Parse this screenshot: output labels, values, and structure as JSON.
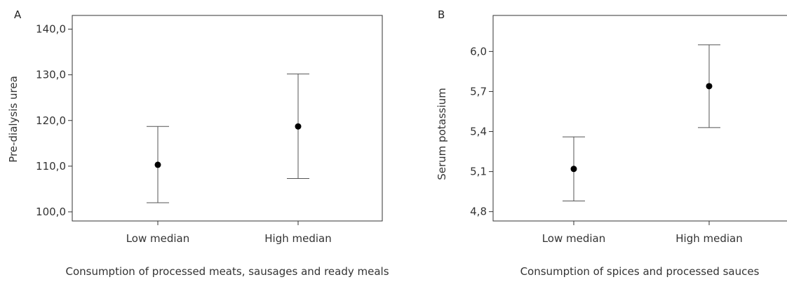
{
  "chart_data": [
    {
      "type": "errorbar",
      "panel_label": "A",
      "categories": [
        "Low median",
        "High median"
      ],
      "means": [
        110.3,
        118.7
      ],
      "lower": [
        102.0,
        107.3
      ],
      "upper": [
        118.7,
        130.2
      ],
      "ylabel": "Pre-dialysis urea",
      "xlabel": "Consumption of processed meats, sausages and ready meals",
      "ylim": [
        98,
        143
      ],
      "yticks": [
        100,
        110,
        120,
        130,
        140
      ],
      "ytick_labels": [
        "100,0",
        "110,0",
        "120,0",
        "130,0",
        "140,0"
      ],
      "grid": false
    },
    {
      "type": "errorbar",
      "panel_label": "B",
      "categories": [
        "Low median",
        "High median"
      ],
      "means": [
        5.12,
        5.74
      ],
      "lower": [
        4.88,
        5.43
      ],
      "upper": [
        5.36,
        6.05
      ],
      "ylabel": "Serum potassium",
      "xlabel": "Consumption of spices and processed sauces",
      "ylim": [
        4.73,
        6.27
      ],
      "yticks": [
        4.8,
        5.1,
        5.4,
        5.7,
        6.0
      ],
      "ytick_labels": [
        "4,8",
        "5,1",
        "5,4",
        "5,7",
        "6,0"
      ],
      "grid": false
    }
  ]
}
